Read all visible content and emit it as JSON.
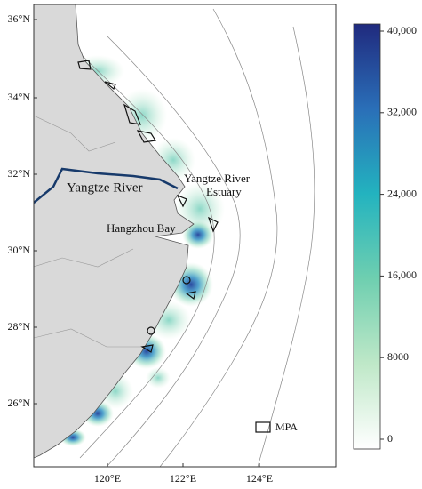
{
  "map": {
    "latitude_labels": [
      "36°N",
      "34°N",
      "32°N",
      "30°N",
      "28°N",
      "26°N"
    ],
    "longitude_labels": [
      "120°E",
      "122°E",
      "124°E"
    ],
    "places": {
      "river": "Yangtze River",
      "estuary": [
        "Yangtze River",
        "Estuary"
      ],
      "bay": "Hangzhou Bay"
    },
    "legend": "MPA"
  },
  "colorbar": {
    "range": [
      0,
      40000
    ],
    "ticks": [
      0,
      8000,
      {
        "value": 16000,
        "label": "16,000"
      },
      {
        "value": 24000,
        "label": "24,000"
      },
      {
        "value": 32000,
        "label": "32,000"
      },
      {
        "value": 40000,
        "label": "40,000"
      }
    ]
  }
}
